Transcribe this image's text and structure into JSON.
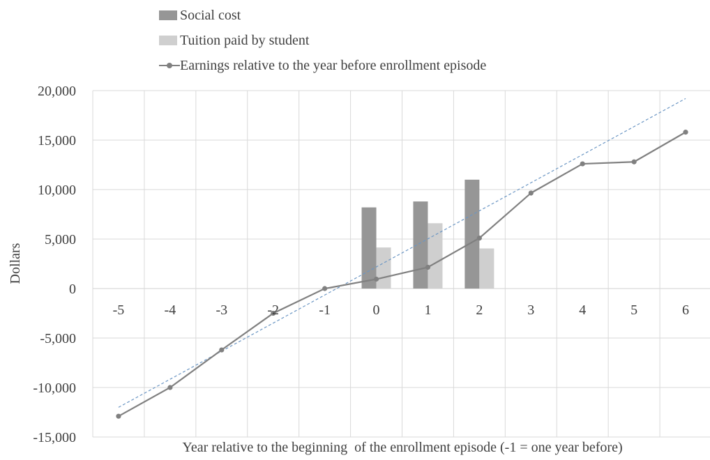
{
  "chart_data": {
    "type": "bar",
    "title": "",
    "xlabel": "Year relative to the beginning  of the enrollment episode (-1 = one year before)",
    "ylabel": "Dollars",
    "ylim": [
      -15000,
      20000
    ],
    "yticks": [
      -15000,
      -10000,
      -5000,
      0,
      5000,
      10000,
      15000,
      20000
    ],
    "ytick_labels": [
      "-15,000",
      "-10,000",
      "-5,000",
      "0",
      "5,000",
      "10,000",
      "15,000",
      "20,000"
    ],
    "categories": [
      "-5",
      "-4",
      "-3",
      "-2",
      "-1",
      "0",
      "1",
      "2",
      "3",
      "4",
      "5",
      "6"
    ],
    "grid": true,
    "legend_position": "top-left",
    "series": [
      {
        "name": "Social cost",
        "type": "bar",
        "color": "#969696",
        "values": [
          null,
          null,
          null,
          null,
          null,
          8200,
          8800,
          11000,
          null,
          null,
          null,
          null
        ]
      },
      {
        "name": "Tuition paid by student",
        "type": "bar",
        "color": "#cfcfcf",
        "values": [
          null,
          null,
          null,
          null,
          null,
          4150,
          6600,
          4050,
          null,
          null,
          null,
          null
        ]
      },
      {
        "name": "Earnings relative to the year before enrollment episode",
        "type": "line",
        "color": "#808080",
        "values": [
          -12900,
          -10000,
          -6200,
          -2500,
          0,
          950,
          2150,
          5100,
          9650,
          12600,
          12800,
          15800
        ]
      }
    ],
    "trendline": {
      "type": "linear",
      "color": "#6b96c4",
      "style": "dashed",
      "start": {
        "x": "-5",
        "y": -12000
      },
      "end": {
        "x": "6",
        "y": 19200
      }
    }
  }
}
